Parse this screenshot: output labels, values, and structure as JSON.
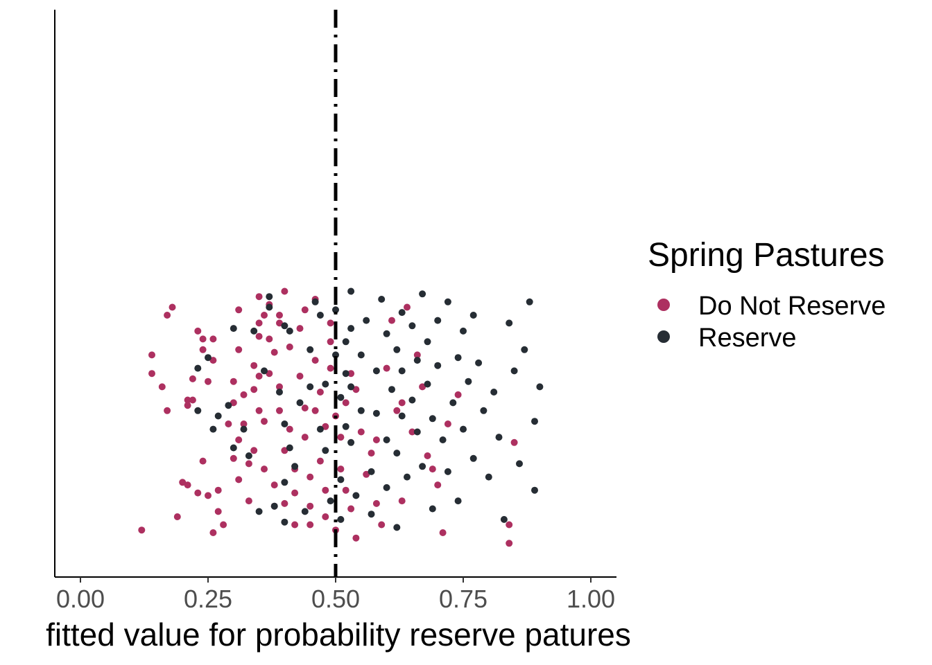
{
  "chart_data": {
    "type": "scatter",
    "title": "",
    "xlabel": "fitted value for probability reserve patures",
    "ylabel": "",
    "xlim": [
      0,
      1
    ],
    "x_ticks": [
      "0.00",
      "0.25",
      "0.50",
      "0.75",
      "1.00"
    ],
    "x_tick_values": [
      0,
      0.25,
      0.5,
      0.75,
      1
    ],
    "reference_line": {
      "x": 0.5,
      "style": "dashed",
      "color": "#000000"
    },
    "y_jitter_range": [
      0,
      1
    ],
    "grid": false,
    "legend": {
      "title": "Spring Pastures",
      "placement": "right"
    },
    "series": [
      {
        "name": "Do Not Reserve",
        "color": "#AD3060",
        "points": [
          [
            0.12,
            0.07
          ],
          [
            0.14,
            0.73
          ],
          [
            0.14,
            0.66
          ],
          [
            0.16,
            0.61
          ],
          [
            0.17,
            0.52
          ],
          [
            0.17,
            0.88
          ],
          [
            0.18,
            0.91
          ],
          [
            0.19,
            0.12
          ],
          [
            0.2,
            0.25
          ],
          [
            0.21,
            0.54
          ],
          [
            0.21,
            0.56
          ],
          [
            0.21,
            0.24
          ],
          [
            0.22,
            0.64
          ],
          [
            0.22,
            0.56
          ],
          [
            0.23,
            0.21
          ],
          [
            0.23,
            0.82
          ],
          [
            0.24,
            0.79
          ],
          [
            0.24,
            0.75
          ],
          [
            0.24,
            0.33
          ],
          [
            0.25,
            0.63
          ],
          [
            0.25,
            0.2
          ],
          [
            0.26,
            0.06
          ],
          [
            0.26,
            0.79
          ],
          [
            0.26,
            0.71
          ],
          [
            0.27,
            0.22
          ],
          [
            0.27,
            0.14
          ],
          [
            0.28,
            0.09
          ],
          [
            0.29,
            0.47
          ],
          [
            0.3,
            0.63
          ],
          [
            0.3,
            0.55
          ],
          [
            0.3,
            0.34
          ],
          [
            0.31,
            0.41
          ],
          [
            0.31,
            0.75
          ],
          [
            0.31,
            0.9
          ],
          [
            0.31,
            0.26
          ],
          [
            0.32,
            0.58
          ],
          [
            0.32,
            0.47
          ],
          [
            0.33,
            0.18
          ],
          [
            0.33,
            0.32
          ],
          [
            0.34,
            0.37
          ],
          [
            0.34,
            0.6
          ],
          [
            0.34,
            0.69
          ],
          [
            0.35,
            0.8
          ],
          [
            0.35,
            0.85
          ],
          [
            0.35,
            0.52
          ],
          [
            0.35,
            0.65
          ],
          [
            0.35,
            0.95
          ],
          [
            0.36,
            0.48
          ],
          [
            0.36,
            0.3
          ],
          [
            0.36,
            0.88
          ],
          [
            0.37,
            0.79
          ],
          [
            0.37,
            0.66
          ],
          [
            0.37,
            0.92
          ],
          [
            0.38,
            0.24
          ],
          [
            0.38,
            0.16
          ],
          [
            0.38,
            0.74
          ],
          [
            0.39,
            0.61
          ],
          [
            0.39,
            0.52
          ],
          [
            0.39,
            0.85
          ],
          [
            0.39,
            0.88
          ],
          [
            0.4,
            0.97
          ],
          [
            0.4,
            0.17
          ],
          [
            0.4,
            0.37
          ],
          [
            0.41,
            0.76
          ],
          [
            0.41,
            0.45
          ],
          [
            0.42,
            0.21
          ],
          [
            0.42,
            0.09
          ],
          [
            0.42,
            0.3
          ],
          [
            0.43,
            0.83
          ],
          [
            0.43,
            0.65
          ],
          [
            0.44,
            0.42
          ],
          [
            0.44,
            0.9
          ],
          [
            0.44,
            0.53
          ],
          [
            0.45,
            0.16
          ],
          [
            0.45,
            0.09
          ],
          [
            0.45,
            0.27
          ],
          [
            0.46,
            0.94
          ],
          [
            0.46,
            0.71
          ],
          [
            0.46,
            0.52
          ],
          [
            0.47,
            0.59
          ],
          [
            0.47,
            0.33
          ],
          [
            0.48,
            0.12
          ],
          [
            0.48,
            0.22
          ],
          [
            0.48,
            0.46
          ],
          [
            0.49,
            0.68
          ],
          [
            0.49,
            0.78
          ],
          [
            0.49,
            0.85
          ],
          [
            0.5,
            0.07
          ],
          [
            0.5,
            0.5
          ],
          [
            0.51,
            0.3
          ],
          [
            0.51,
            0.42
          ],
          [
            0.52,
            0.55
          ],
          [
            0.52,
            0.22
          ],
          [
            0.53,
            0.66
          ],
          [
            0.53,
            0.15
          ],
          [
            0.54,
            0.6
          ],
          [
            0.54,
            0.04
          ],
          [
            0.55,
            0.44
          ],
          [
            0.56,
            0.28
          ],
          [
            0.57,
            0.36
          ],
          [
            0.58,
            0.17
          ],
          [
            0.58,
            0.41
          ],
          [
            0.59,
            0.09
          ],
          [
            0.6,
            0.68
          ],
          [
            0.61,
            0.86
          ],
          [
            0.62,
            0.52
          ],
          [
            0.63,
            0.55
          ],
          [
            0.63,
            0.18
          ],
          [
            0.64,
            0.91
          ],
          [
            0.65,
            0.44
          ],
          [
            0.66,
            0.73
          ],
          [
            0.67,
            0.61
          ],
          [
            0.68,
            0.35
          ],
          [
            0.69,
            0.3
          ],
          [
            0.7,
            0.24
          ],
          [
            0.71,
            0.06
          ],
          [
            0.72,
            0.47
          ],
          [
            0.74,
            0.58
          ],
          [
            0.84,
            0.09
          ],
          [
            0.84,
            0.02
          ],
          [
            0.85,
            0.4
          ]
        ]
      },
      {
        "name": "Reserve",
        "color": "#262D34",
        "points": [
          [
            0.23,
            0.68
          ],
          [
            0.23,
            0.52
          ],
          [
            0.25,
            0.72
          ],
          [
            0.26,
            0.45
          ],
          [
            0.27,
            0.5
          ],
          [
            0.29,
            0.54
          ],
          [
            0.3,
            0.38
          ],
          [
            0.3,
            0.83
          ],
          [
            0.32,
            0.45
          ],
          [
            0.33,
            0.35
          ],
          [
            0.34,
            0.82
          ],
          [
            0.35,
            0.14
          ],
          [
            0.36,
            0.67
          ],
          [
            0.37,
            0.91
          ],
          [
            0.37,
            0.95
          ],
          [
            0.38,
            0.16
          ],
          [
            0.39,
            0.59
          ],
          [
            0.4,
            0.84
          ],
          [
            0.4,
            0.47
          ],
          [
            0.4,
            0.25
          ],
          [
            0.4,
            0.1
          ],
          [
            0.41,
            0.38
          ],
          [
            0.41,
            0.82
          ],
          [
            0.42,
            0.31
          ],
          [
            0.43,
            0.55
          ],
          [
            0.44,
            0.14
          ],
          [
            0.45,
            0.75
          ],
          [
            0.45,
            0.61
          ],
          [
            0.46,
            0.93
          ],
          [
            0.47,
            0.45
          ],
          [
            0.47,
            0.88
          ],
          [
            0.48,
            0.62
          ],
          [
            0.48,
            0.37
          ],
          [
            0.49,
            0.18
          ],
          [
            0.5,
            0.9
          ],
          [
            0.5,
            0.73
          ],
          [
            0.51,
            0.57
          ],
          [
            0.51,
            0.26
          ],
          [
            0.51,
            0.11
          ],
          [
            0.52,
            0.78
          ],
          [
            0.52,
            0.66
          ],
          [
            0.52,
            0.46
          ],
          [
            0.53,
            0.97
          ],
          [
            0.53,
            0.83
          ],
          [
            0.53,
            0.61
          ],
          [
            0.53,
            0.4
          ],
          [
            0.54,
            0.2
          ],
          [
            0.55,
            0.73
          ],
          [
            0.55,
            0.52
          ],
          [
            0.56,
            0.86
          ],
          [
            0.57,
            0.29
          ],
          [
            0.57,
            0.13
          ],
          [
            0.58,
            0.67
          ],
          [
            0.58,
            0.51
          ],
          [
            0.59,
            0.94
          ],
          [
            0.6,
            0.81
          ],
          [
            0.6,
            0.41
          ],
          [
            0.6,
            0.23
          ],
          [
            0.61,
            0.6
          ],
          [
            0.62,
            0.75
          ],
          [
            0.62,
            0.36
          ],
          [
            0.62,
            0.08
          ],
          [
            0.63,
            0.89
          ],
          [
            0.63,
            0.67
          ],
          [
            0.63,
            0.5
          ],
          [
            0.64,
            0.27
          ],
          [
            0.65,
            0.84
          ],
          [
            0.65,
            0.56
          ],
          [
            0.66,
            0.71
          ],
          [
            0.66,
            0.44
          ],
          [
            0.67,
            0.96
          ],
          [
            0.67,
            0.31
          ],
          [
            0.68,
            0.78
          ],
          [
            0.68,
            0.62
          ],
          [
            0.69,
            0.49
          ],
          [
            0.69,
            0.15
          ],
          [
            0.7,
            0.86
          ],
          [
            0.7,
            0.69
          ],
          [
            0.71,
            0.41
          ],
          [
            0.72,
            0.29
          ],
          [
            0.72,
            0.93
          ],
          [
            0.73,
            0.55
          ],
          [
            0.74,
            0.72
          ],
          [
            0.74,
            0.18
          ],
          [
            0.75,
            0.82
          ],
          [
            0.75,
            0.45
          ],
          [
            0.76,
            0.63
          ],
          [
            0.77,
            0.34
          ],
          [
            0.77,
            0.88
          ],
          [
            0.78,
            0.7
          ],
          [
            0.79,
            0.52
          ],
          [
            0.8,
            0.27
          ],
          [
            0.81,
            0.59
          ],
          [
            0.82,
            0.42
          ],
          [
            0.83,
            0.11
          ],
          [
            0.84,
            0.85
          ],
          [
            0.85,
            0.67
          ],
          [
            0.86,
            0.32
          ],
          [
            0.87,
            0.75
          ],
          [
            0.88,
            0.93
          ],
          [
            0.89,
            0.48
          ],
          [
            0.89,
            0.22
          ],
          [
            0.9,
            0.61
          ]
        ]
      }
    ]
  }
}
